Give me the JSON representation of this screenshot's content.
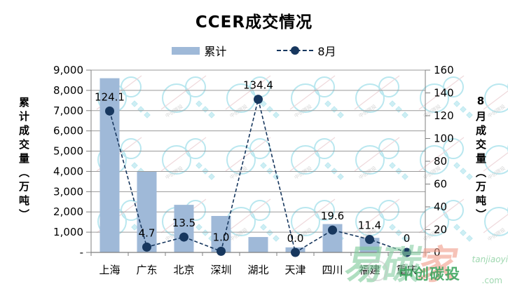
{
  "title": "CCER成交情况",
  "legend": {
    "bar_label": "累计",
    "line_label": "8月"
  },
  "colors": {
    "bar": "#9fb9d8",
    "line": "#17375e",
    "grid": "#9a9a9a",
    "axis": "#7f7f7f",
    "watermark_cloud": "#b9e7ef",
    "watermark_diamond": "#cdeef4",
    "watermark_pink_line": "#efd9dc",
    "watermark_green": "#3da65f",
    "watermark_red": "#f2a08d"
  },
  "chart_data": {
    "type": "bar+line combo, dual axis",
    "categories": [
      "上海",
      "广东",
      "北京",
      "深圳",
      "湖北",
      "天津",
      "四川",
      "福建",
      "重庆"
    ],
    "series": [
      {
        "name": "累计",
        "type": "bar",
        "axis": "left",
        "values": [
          8600,
          3980,
          2350,
          1800,
          760,
          250,
          1400,
          720,
          20
        ]
      },
      {
        "name": "8月",
        "type": "line",
        "axis": "right",
        "values": [
          124.1,
          4.7,
          13.5,
          1.0,
          134.4,
          0.0,
          19.6,
          11.4,
          0
        ],
        "point_labels": [
          "124.1",
          "4.7",
          "13.5",
          "1.0",
          "134.4",
          "0.0",
          "19.6",
          "11.4",
          "0"
        ]
      }
    ],
    "left_axis": {
      "title": "累计成交量（万吨）",
      "min": 0,
      "max": 9000,
      "step": 1000,
      "tick_labels": [
        "-",
        "1,000",
        "2,000",
        "3,000",
        "4,000",
        "5,000",
        "6,000",
        "7,000",
        "8,000",
        "9,000"
      ]
    },
    "right_axis": {
      "title": "8月成交量（万吨）",
      "min": 0,
      "max": 160,
      "step": 20,
      "tick_labels": [
        "0",
        "20",
        "40",
        "60",
        "80",
        "100",
        "120",
        "140",
        "160"
      ]
    },
    "grid": true,
    "legend_position": "top"
  },
  "watermark": {
    "big_chars": [
      "易",
      "碳",
      "家"
    ],
    "brand": "中创碳投",
    "small_top": "tanjiaoyi",
    "small_bottom": ".com"
  }
}
